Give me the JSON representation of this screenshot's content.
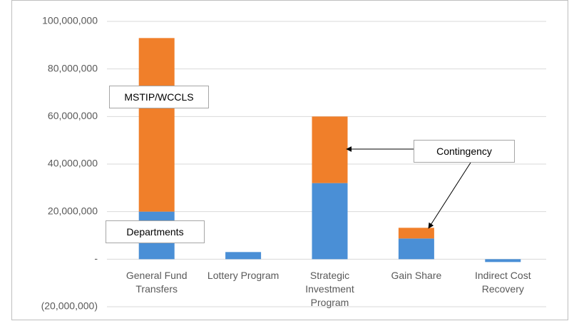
{
  "chart_data": {
    "type": "stacked_bar",
    "categories": [
      "General Fund Transfers",
      "Lottery Program",
      "Strategic Investment Program",
      "Gain Share",
      "Indirect Cost Recovery"
    ],
    "series": [
      {
        "color": "#4a8fd6",
        "values": [
          20000000,
          3000000,
          32000000,
          8700000,
          -1200000
        ]
      },
      {
        "color": "#f07f2a",
        "values": [
          73000000,
          0,
          28000000,
          4500000,
          0
        ]
      }
    ],
    "ylim": [
      -20000000,
      100000000
    ],
    "yticks": [
      {
        "value": -20000000,
        "label": "(20,000,000)"
      },
      {
        "value": 0,
        "label": "-"
      },
      {
        "value": 20000000,
        "label": "20,000,000"
      },
      {
        "value": 40000000,
        "label": "40,000,000"
      },
      {
        "value": 60000000,
        "label": "60,000,000"
      },
      {
        "value": 80000000,
        "label": "80,000,000"
      },
      {
        "value": 100000000,
        "label": "100,000,000"
      }
    ],
    "grid": true,
    "annotations": [
      "MSTIP/WCCLS",
      "Departments",
      "Contingency"
    ]
  }
}
